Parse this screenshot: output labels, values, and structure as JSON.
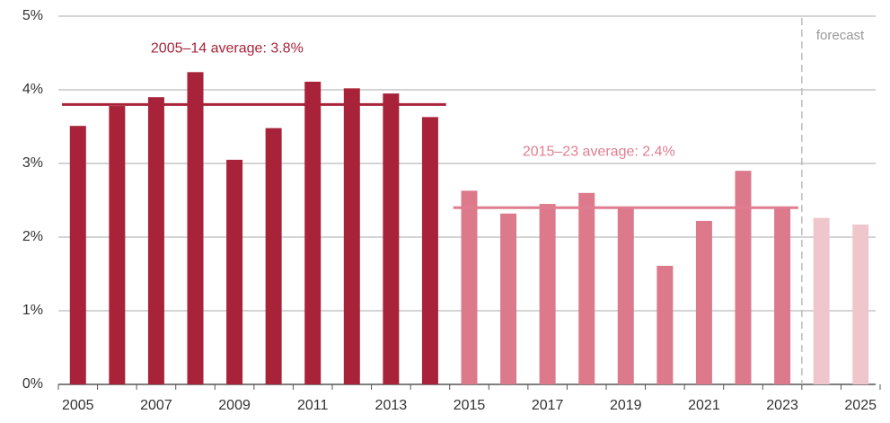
{
  "chart_data": {
    "type": "bar",
    "categories": [
      "2005",
      null,
      "2007",
      null,
      "2009",
      null,
      "2011",
      null,
      "2013",
      null,
      "2015",
      null,
      "2017",
      null,
      "2019",
      null,
      "2021",
      null,
      "2023",
      null,
      "2025"
    ],
    "values": [
      3.51,
      3.78,
      3.9,
      4.24,
      3.05,
      3.48,
      4.11,
      4.02,
      3.95,
      3.63,
      2.63,
      2.32,
      2.45,
      2.6,
      2.39,
      1.61,
      2.22,
      2.9,
      2.41,
      2.26,
      2.17
    ],
    "colors": [
      "#a8233a",
      "#a8233a",
      "#a8233a",
      "#a8233a",
      "#a8233a",
      "#a8233a",
      "#a8233a",
      "#a8233a",
      "#a8233a",
      "#a8233a",
      "#dc7a8c",
      "#dc7a8c",
      "#dc7a8c",
      "#dc7a8c",
      "#dc7a8c",
      "#dc7a8c",
      "#dc7a8c",
      "#dc7a8c",
      "#dc7a8c",
      "#f0c6cd",
      "#f0c6cd"
    ],
    "ylim": [
      0,
      5
    ],
    "yticks": [
      {
        "value": 0,
        "label": "0%"
      },
      {
        "value": 1,
        "label": "1%"
      },
      {
        "value": 2,
        "label": "2%"
      },
      {
        "value": 3,
        "label": "3%"
      },
      {
        "value": 4,
        "label": "4%"
      },
      {
        "value": 5,
        "label": "5%"
      }
    ],
    "grid": true,
    "averages": [
      {
        "label": "2005–14 average: 3.8%",
        "value": 3.8,
        "start": 0,
        "end": 9,
        "color": "#a8233a"
      },
      {
        "label": "2015–23 average: 2.4%",
        "value": 2.4,
        "start": 10,
        "end": 18,
        "color": "#e07d90"
      }
    ],
    "forecast": {
      "label": "forecast",
      "start": 19
    }
  }
}
